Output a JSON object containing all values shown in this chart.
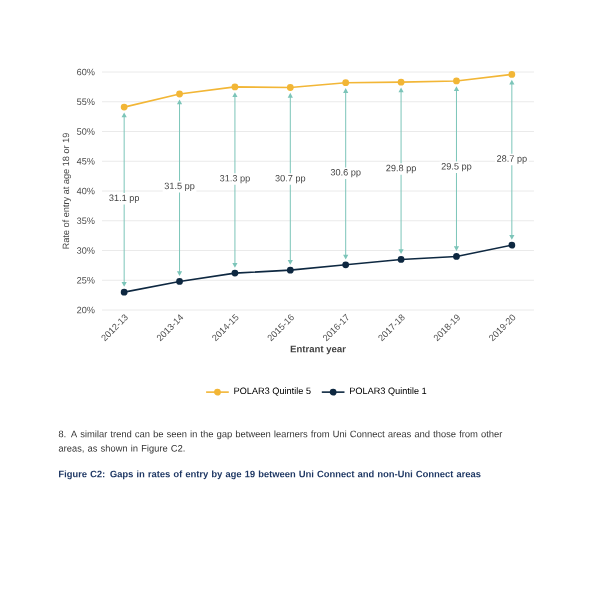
{
  "chart_data": {
    "type": "line",
    "xlabel": "Entrant year",
    "ylabel": "Rate of entry at age 18 or 19",
    "categories": [
      "2012-13",
      "2013-14",
      "2014-15",
      "2015-16",
      "2016-17",
      "2017-18",
      "2018-19",
      "2019-20"
    ],
    "series": [
      {
        "name": "POLAR3 Quintile 5",
        "color": "#f2b636",
        "values": [
          54.1,
          56.3,
          57.5,
          57.4,
          58.2,
          58.3,
          58.5,
          59.6
        ]
      },
      {
        "name": "POLAR3 Quintile 1",
        "color": "#0e2841",
        "values": [
          23.0,
          24.8,
          26.2,
          26.7,
          27.6,
          28.5,
          29.0,
          30.9
        ]
      }
    ],
    "ylim": [
      20,
      60
    ],
    "yticks": [
      {
        "value": 20,
        "label": "20%"
      },
      {
        "value": 25,
        "label": "25%"
      },
      {
        "value": 30,
        "label": "30%"
      },
      {
        "value": 35,
        "label": "35%"
      },
      {
        "value": 40,
        "label": "40%"
      },
      {
        "value": 45,
        "label": "45%"
      },
      {
        "value": 50,
        "label": "50%"
      },
      {
        "value": 55,
        "label": "55%"
      },
      {
        "value": 60,
        "label": "60%"
      }
    ],
    "grid": "y",
    "legend": "bottom",
    "marker": "circle",
    "line_style": "solid",
    "annotations": [
      {
        "text": "31.1 pp",
        "x": "2012-13",
        "y": 38.7
      },
      {
        "text": "31.5 pp",
        "x": "2013-14",
        "y": 40.7
      },
      {
        "text": "31.3 pp",
        "x": "2014-15",
        "y": 42.0
      },
      {
        "text": "30.7 pp",
        "x": "2015-16",
        "y": 42.0
      },
      {
        "text": "30.6 pp",
        "x": "2016-17",
        "y": 43.0
      },
      {
        "text": "29.8 pp",
        "x": "2017-18",
        "y": 43.7
      },
      {
        "text": "29.5 pp",
        "x": "2018-19",
        "y": 44.0
      },
      {
        "text": "28.7 pp",
        "x": "2019-20",
        "y": 45.3
      },
      "8.  A similar trend can be seen in the gap between learners from Uni Connect areas and those from other areas, as shown in Figure C2.",
      "Figure C2: Gaps in rates of entry by age 19 between Uni Connect and non-Uni Connect areas"
    ]
  }
}
